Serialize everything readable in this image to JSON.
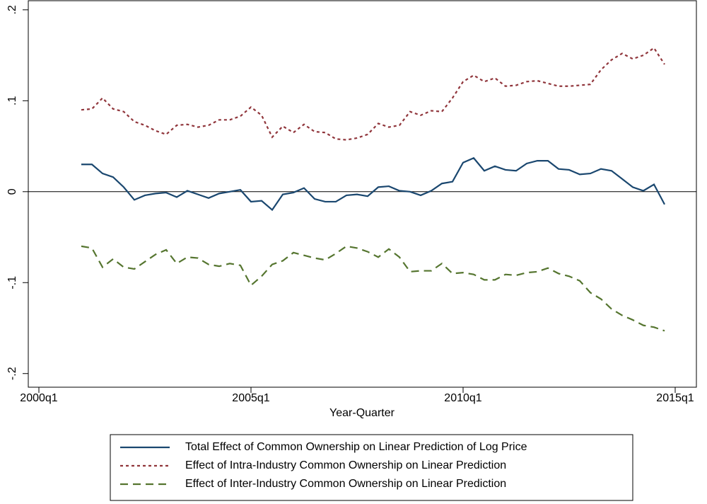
{
  "chart_data": {
    "type": "line",
    "x_label": "Year-Quarter",
    "x": [
      "2001q1",
      "2001q2",
      "2001q3",
      "2001q4",
      "2002q1",
      "2002q2",
      "2002q3",
      "2002q4",
      "2003q1",
      "2003q2",
      "2003q3",
      "2003q4",
      "2004q1",
      "2004q2",
      "2004q3",
      "2004q4",
      "2005q1",
      "2005q2",
      "2005q3",
      "2005q4",
      "2006q1",
      "2006q2",
      "2006q3",
      "2006q4",
      "2007q1",
      "2007q2",
      "2007q3",
      "2007q4",
      "2008q1",
      "2008q2",
      "2008q3",
      "2008q4",
      "2009q1",
      "2009q2",
      "2009q3",
      "2009q4",
      "2010q1",
      "2010q2",
      "2010q3",
      "2010q4",
      "2011q1",
      "2011q2",
      "2011q3",
      "2011q4",
      "2012q1",
      "2012q2",
      "2012q3",
      "2012q4",
      "2013q1",
      "2013q2",
      "2013q3",
      "2013q4",
      "2014q1",
      "2014q2",
      "2014q3",
      "2014q4"
    ],
    "series": [
      {
        "name": "Total Effect of Common Ownership on Linear Prediction of Log Price",
        "color": "#1a476f",
        "dash": "solid",
        "values": [
          0.03,
          0.03,
          0.02,
          0.016,
          0.005,
          -0.009,
          -0.004,
          -0.002,
          -0.001,
          -0.006,
          0.001,
          -0.003,
          -0.007,
          -0.002,
          0.0,
          0.002,
          -0.011,
          -0.01,
          -0.02,
          -0.003,
          -0.001,
          0.004,
          -0.008,
          -0.011,
          -0.011,
          -0.004,
          -0.003,
          -0.005,
          0.005,
          0.006,
          0.001,
          0.0,
          -0.004,
          0.001,
          0.009,
          0.011,
          0.032,
          0.037,
          0.023,
          0.028,
          0.024,
          0.023,
          0.031,
          0.034,
          0.034,
          0.025,
          0.024,
          0.019,
          0.02,
          0.025,
          0.023,
          0.014,
          0.005,
          0.001,
          0.008,
          -0.014
        ]
      },
      {
        "name": "Effect of Intra-Industry Common Ownership on Linear Prediction",
        "color": "#90353b",
        "dash": "short",
        "values": [
          0.09,
          0.091,
          0.103,
          0.091,
          0.088,
          0.077,
          0.073,
          0.067,
          0.063,
          0.073,
          0.074,
          0.071,
          0.073,
          0.079,
          0.079,
          0.083,
          0.093,
          0.084,
          0.06,
          0.072,
          0.065,
          0.074,
          0.066,
          0.065,
          0.058,
          0.057,
          0.059,
          0.063,
          0.075,
          0.071,
          0.073,
          0.088,
          0.084,
          0.089,
          0.088,
          0.103,
          0.121,
          0.128,
          0.121,
          0.125,
          0.116,
          0.117,
          0.121,
          0.122,
          0.119,
          0.116,
          0.116,
          0.117,
          0.118,
          0.134,
          0.145,
          0.152,
          0.146,
          0.15,
          0.158,
          0.14
        ]
      },
      {
        "name": "Effect of Inter-Industry Common Ownership on Linear Prediction",
        "color": "#55752f",
        "dash": "long",
        "values": [
          -0.06,
          -0.062,
          -0.083,
          -0.074,
          -0.083,
          -0.085,
          -0.077,
          -0.069,
          -0.064,
          -0.079,
          -0.072,
          -0.073,
          -0.08,
          -0.082,
          -0.079,
          -0.081,
          -0.103,
          -0.093,
          -0.08,
          -0.076,
          -0.067,
          -0.07,
          -0.073,
          -0.075,
          -0.068,
          -0.06,
          -0.062,
          -0.066,
          -0.072,
          -0.063,
          -0.072,
          -0.088,
          -0.087,
          -0.087,
          -0.079,
          -0.09,
          -0.089,
          -0.091,
          -0.097,
          -0.097,
          -0.091,
          -0.092,
          -0.089,
          -0.088,
          -0.084,
          -0.09,
          -0.093,
          -0.098,
          -0.111,
          -0.118,
          -0.129,
          -0.136,
          -0.141,
          -0.147,
          -0.149,
          -0.153
        ]
      }
    ],
    "xlim": [
      "1999q4",
      "2015q3"
    ],
    "xticks": [
      "2000q1",
      "2005q1",
      "2010q1",
      "2015q1"
    ],
    "ylim": [
      -0.215,
      0.21
    ],
    "yticks": [
      {
        "value": -0.2,
        "label": "-.2"
      },
      {
        "value": -0.1,
        "label": "-.1"
      },
      0,
      {
        "value": 0.1,
        "label": ".1"
      },
      {
        "value": 0.2,
        "label": ".2"
      }
    ],
    "reference_line": 0,
    "legend": "bottom"
  }
}
